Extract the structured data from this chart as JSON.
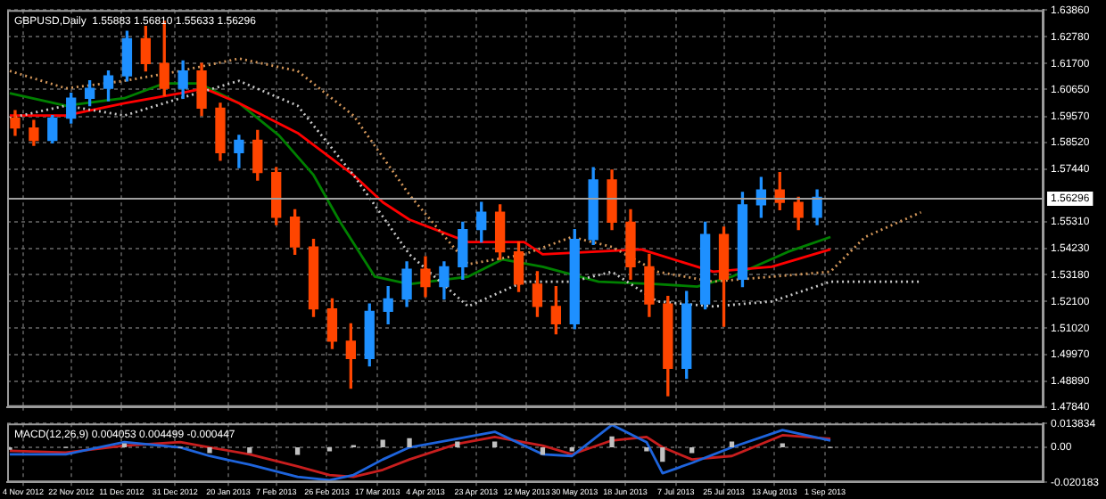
{
  "chart_data": [
    {
      "type": "candlestick",
      "title": "GBPUSD,Daily  1.55883 1.56810 1.55633 1.56296",
      "x": [
        "2012-11-01",
        "2012-11-08",
        "2012-11-15",
        "2012-11-22",
        "2012-11-29",
        "2012-12-06",
        "2012-12-13",
        "2012-12-20",
        "2012-12-27",
        "2013-01-03",
        "2013-01-10",
        "2013-01-17",
        "2013-01-24",
        "2013-01-31",
        "2013-02-07",
        "2013-02-14",
        "2013-02-21",
        "2013-02-28",
        "2013-03-07",
        "2013-03-14",
        "2013-03-21",
        "2013-03-28",
        "2013-04-04",
        "2013-04-11",
        "2013-04-18",
        "2013-04-25",
        "2013-05-02",
        "2013-05-09",
        "2013-05-16",
        "2013-05-23",
        "2013-05-30",
        "2013-06-06",
        "2013-06-13",
        "2013-06-20",
        "2013-06-27",
        "2013-07-04",
        "2013-07-11",
        "2013-07-18",
        "2013-07-25",
        "2013-08-01",
        "2013-08-08",
        "2013-08-15",
        "2013-08-22",
        "2013-08-29"
      ],
      "ohlc": [
        [
          1.595,
          1.598,
          1.588,
          1.591
        ],
        [
          1.591,
          1.594,
          1.584,
          1.586
        ],
        [
          1.586,
          1.596,
          1.585,
          1.595
        ],
        [
          1.595,
          1.605,
          1.593,
          1.603
        ],
        [
          1.603,
          1.61,
          1.6,
          1.607
        ],
        [
          1.607,
          1.614,
          1.602,
          1.612
        ],
        [
          1.612,
          1.63,
          1.61,
          1.627
        ],
        [
          1.627,
          1.632,
          1.614,
          1.617
        ],
        [
          1.617,
          1.634,
          1.604,
          1.607
        ],
        [
          1.607,
          1.618,
          1.603,
          1.614
        ],
        [
          1.614,
          1.617,
          1.596,
          1.599
        ],
        [
          1.599,
          1.601,
          1.578,
          1.581
        ],
        [
          1.581,
          1.588,
          1.575,
          1.586
        ],
        [
          1.586,
          1.59,
          1.57,
          1.573
        ],
        [
          1.573,
          1.575,
          1.552,
          1.555
        ],
        [
          1.555,
          1.558,
          1.54,
          1.543
        ],
        [
          1.543,
          1.546,
          1.515,
          1.518
        ],
        [
          1.518,
          1.522,
          1.502,
          1.505
        ],
        [
          1.505,
          1.512,
          1.486,
          1.498
        ],
        [
          1.498,
          1.52,
          1.495,
          1.517
        ],
        [
          1.517,
          1.527,
          1.512,
          1.522
        ],
        [
          1.522,
          1.537,
          1.519,
          1.534
        ],
        [
          1.534,
          1.539,
          1.523,
          1.527
        ],
        [
          1.527,
          1.537,
          1.522,
          1.535
        ],
        [
          1.535,
          1.553,
          1.53,
          1.55
        ],
        [
          1.55,
          1.561,
          1.545,
          1.557
        ],
        [
          1.557,
          1.56,
          1.538,
          1.541
        ],
        [
          1.541,
          1.545,
          1.525,
          1.528
        ],
        [
          1.528,
          1.533,
          1.515,
          1.519
        ],
        [
          1.519,
          1.527,
          1.508,
          1.512
        ],
        [
          1.512,
          1.55,
          1.51,
          1.546
        ],
        [
          1.546,
          1.575,
          1.544,
          1.57
        ],
        [
          1.57,
          1.574,
          1.55,
          1.553
        ],
        [
          1.553,
          1.558,
          1.53,
          1.535
        ],
        [
          1.535,
          1.54,
          1.515,
          1.52
        ],
        [
          1.52,
          1.523,
          1.483,
          1.494
        ],
        [
          1.494,
          1.525,
          1.49,
          1.52
        ],
        [
          1.52,
          1.553,
          1.518,
          1.548
        ],
        [
          1.548,
          1.551,
          1.511,
          1.53
        ],
        [
          1.53,
          1.565,
          1.527,
          1.56
        ],
        [
          1.56,
          1.571,
          1.555,
          1.566
        ],
        [
          1.566,
          1.573,
          1.558,
          1.561
        ],
        [
          1.561,
          1.563,
          1.55,
          1.555
        ],
        [
          1.555,
          1.566,
          1.552,
          1.563
        ]
      ],
      "colors": [
        "#ff4500",
        "#ff4500",
        "#1e90ff",
        "#1e90ff",
        "#1e90ff",
        "#1e90ff",
        "#1e90ff",
        "#ff4500",
        "#ff4500",
        "#1e90ff",
        "#ff4500",
        "#ff4500",
        "#1e90ff",
        "#ff4500",
        "#ff4500",
        "#ff4500",
        "#ff4500",
        "#ff4500",
        "#ff4500",
        "#1e90ff",
        "#1e90ff",
        "#1e90ff",
        "#ff4500",
        "#1e90ff",
        "#1e90ff",
        "#1e90ff",
        "#ff4500",
        "#ff4500",
        "#ff4500",
        "#ff4500",
        "#1e90ff",
        "#1e90ff",
        "#ff4500",
        "#ff4500",
        "#ff4500",
        "#ff4500",
        "#1e90ff",
        "#1e90ff",
        "#ff4500",
        "#1e90ff",
        "#1e90ff",
        "#ff4500",
        "#ff4500",
        "#1e90ff"
      ],
      "series": [
        {
          "type": "line",
          "color": "#d2965a",
          "line_style": "dotted",
          "x": [
            "2012-10-30",
            "2012-11-20",
            "2012-12-12",
            "2013-01-02",
            "2013-01-24",
            "2013-02-15",
            "2013-03-08",
            "2013-03-29",
            "2013-04-20",
            "2013-05-11",
            "2013-05-29",
            "2013-06-13",
            "2013-06-30",
            "2013-07-21",
            "2013-08-12",
            "2013-09-03",
            "2013-09-16",
            "2013-10-07"
          ],
          "values": [
            1.614,
            1.607,
            1.61,
            1.614,
            1.619,
            1.614,
            1.596,
            1.564,
            1.536,
            1.54,
            1.547,
            1.543,
            1.533,
            1.529,
            1.531,
            1.533,
            1.547,
            1.557
          ]
        },
        {
          "type": "line",
          "color": "#c8c8c8",
          "line_style": "dotted",
          "x": [
            "2012-10-30",
            "2012-11-20",
            "2012-12-12",
            "2013-01-02",
            "2013-01-24",
            "2013-02-15",
            "2013-03-08",
            "2013-03-29",
            "2013-04-20",
            "2013-05-11",
            "2013-05-29",
            "2013-06-13",
            "2013-06-30",
            "2013-07-21",
            "2013-08-12",
            "2013-09-03",
            "2013-09-16",
            "2013-10-07"
          ],
          "values": [
            1.595,
            1.6,
            1.596,
            1.603,
            1.61,
            1.6,
            1.572,
            1.54,
            1.519,
            1.529,
            1.529,
            1.533,
            1.521,
            1.519,
            1.521,
            1.529,
            1.529,
            1.529
          ]
        },
        {
          "type": "line",
          "color": "#ff0000",
          "x": [
            "2012-10-30",
            "2012-11-20",
            "2012-12-12",
            "2013-01-02",
            "2013-01-11",
            "2013-01-24",
            "2013-02-15",
            "2013-03-08",
            "2013-03-19",
            "2013-03-29",
            "2013-04-20",
            "2013-05-11",
            "2013-05-18",
            "2013-06-24",
            "2013-07-21",
            "2013-08-12",
            "2013-09-03"
          ],
          "values": [
            1.596,
            1.596,
            1.601,
            1.605,
            1.607,
            1.601,
            1.589,
            1.572,
            1.561,
            1.554,
            1.545,
            1.545,
            1.54,
            1.542,
            1.533,
            1.535,
            1.542
          ]
        },
        {
          "type": "line",
          "color": "#008000",
          "x": [
            "2012-10-30",
            "2012-11-20",
            "2012-12-12",
            "2012-12-27",
            "2013-01-09",
            "2013-01-24",
            "2013-02-08",
            "2013-02-21",
            "2013-03-03",
            "2013-03-16",
            "2013-03-29",
            "2013-04-20",
            "2013-05-03",
            "2013-05-18",
            "2013-06-08",
            "2013-06-30",
            "2013-07-15",
            "2013-07-28",
            "2013-08-18",
            "2013-09-03"
          ],
          "values": [
            1.605,
            1.6,
            1.603,
            1.609,
            1.609,
            1.601,
            1.588,
            1.572,
            1.553,
            1.531,
            1.528,
            1.531,
            1.538,
            1.535,
            1.529,
            1.528,
            1.527,
            1.531,
            1.541,
            1.547
          ]
        }
      ],
      "xlim": [
        "2012-10-29",
        "2013-11-22"
      ],
      "xticks": [
        {
          "value": "2012-11-04",
          "label": null
        },
        {
          "value": "2012-11-22",
          "label": null
        },
        {
          "value": "2012-12-11",
          "label": null
        },
        {
          "value": "2012-12-31",
          "label": null
        },
        {
          "value": "2013-01-20",
          "label": null
        },
        {
          "value": "2013-02-07",
          "label": null
        },
        {
          "value": "2013-02-26",
          "label": null
        },
        {
          "value": "2013-03-17",
          "label": null
        },
        {
          "value": "2013-04-04",
          "label": null
        },
        {
          "value": "2013-04-23",
          "label": null
        },
        {
          "value": "2013-05-12",
          "label": null
        },
        {
          "value": "2013-05-30",
          "label": null
        },
        {
          "value": "2013-06-18",
          "label": null
        },
        {
          "value": "2013-07-07",
          "label": null
        },
        {
          "value": "2013-07-25",
          "label": null
        },
        {
          "value": "2013-08-13",
          "label": null
        },
        {
          "value": "2013-09-01",
          "label": null
        }
      ],
      "ylim": [
        1.4784,
        1.6386
      ],
      "yticks": [
        {
          "value": 1.6386,
          "label": "1.63860"
        },
        {
          "value": 1.6278,
          "label": "1.62780"
        },
        {
          "value": 1.617,
          "label": "1.61700"
        },
        {
          "value": 1.6065,
          "label": "1.60650"
        },
        {
          "value": 1.5957,
          "label": "1.59570"
        },
        {
          "value": 1.5852,
          "label": "1.58520"
        },
        {
          "value": 1.5744,
          "label": "1.57440"
        },
        {
          "value": 1.5531,
          "label": "1.55310"
        },
        {
          "value": 1.5423,
          "label": "1.54230"
        },
        {
          "value": 1.5318,
          "label": "1.53180"
        },
        {
          "value": 1.521,
          "label": "1.52100"
        },
        {
          "value": 1.5102,
          "label": "1.51020"
        },
        {
          "value": 1.4997,
          "label": "1.49970"
        },
        {
          "value": 1.4889,
          "label": "1.48890"
        },
        {
          "value": 1.4784,
          "label": "1.47840"
        }
      ],
      "ref_lines": [
        {
          "axis": "y",
          "value": 1.56296,
          "label": "1.56296",
          "color": "#a0a0a0"
        }
      ],
      "tick_labels": "y",
      "grid": true,
      "legend": false,
      "marker": "none"
    },
    {
      "type": "line",
      "title": "MACD(12,26,9) 0.004053 0.004499 -0.000447",
      "x": [
        "2012-10-30",
        "2012-11-20",
        "2012-12-12",
        "2013-01-02",
        "2013-01-13",
        "2013-01-28",
        "2013-02-15",
        "2013-02-27",
        "2013-03-08",
        "2013-03-19",
        "2013-03-29",
        "2013-04-16",
        "2013-04-30",
        "2013-05-18",
        "2013-05-29",
        "2013-06-13",
        "2013-06-26",
        "2013-07-02",
        "2013-07-13",
        "2013-07-28",
        "2013-08-16",
        "2013-09-03"
      ],
      "series": [
        {
          "type": "bar",
          "color": "#c0c0c0",
          "values": [
            -0.001,
            0,
            0.002,
            0,
            -0.003,
            -0.003,
            -0.004,
            -0.002,
            0.001,
            0.004,
            0.005,
            0.003,
            0.003,
            -0.004,
            -0.002,
            0.006,
            -0.002,
            -0.008,
            -0.003,
            0.003,
            0.002,
            0
          ]
        },
        {
          "type": "line",
          "color": "#1e64dc",
          "values": [
            -0.004,
            -0.004,
            0.003,
            0,
            -0.005,
            -0.01,
            -0.017,
            -0.019,
            -0.016,
            -0.007,
            0,
            0.005,
            0.009,
            -0.004,
            -0.005,
            0.013,
            0.003,
            -0.015,
            -0.009,
            0,
            0.01,
            0.004
          ]
        },
        {
          "type": "line",
          "color": "#c81e1e",
          "values": [
            -0.002,
            -0.003,
            0.001,
            0.003,
            0,
            -0.004,
            -0.011,
            -0.016,
            -0.017,
            -0.013,
            -0.007,
            0.002,
            0.006,
            0.001,
            -0.004,
            0.004,
            0.006,
            0,
            -0.007,
            -0.005,
            0.007,
            0.005
          ]
        }
      ],
      "xlim": [
        "2012-10-29",
        "2013-11-22"
      ],
      "xticks": [
        {
          "value": "2012-11-04",
          "label": "4 Nov 2012"
        },
        {
          "value": "2012-11-22",
          "label": "22 Nov 2012"
        },
        {
          "value": "2012-12-11",
          "label": "11 Dec 2012"
        },
        {
          "value": "2012-12-31",
          "label": "31 Dec 2012"
        },
        {
          "value": "2013-01-20",
          "label": "20 Jan 2013"
        },
        {
          "value": "2013-02-07",
          "label": "7 Feb 2013"
        },
        {
          "value": "2013-02-26",
          "label": "26 Feb 2013"
        },
        {
          "value": "2013-03-17",
          "label": "17 Mar 2013"
        },
        {
          "value": "2013-04-04",
          "label": "4 Apr 2013"
        },
        {
          "value": "2013-04-23",
          "label": "23 Apr 2013"
        },
        {
          "value": "2013-05-12",
          "label": "12 May 2013"
        },
        {
          "value": "2013-05-30",
          "label": "30 May 2013"
        },
        {
          "value": "2013-06-18",
          "label": "18 Jun 2013"
        },
        {
          "value": "2013-07-07",
          "label": "7 Jul 2013"
        },
        {
          "value": "2013-07-25",
          "label": "25 Jul 2013"
        },
        {
          "value": "2013-08-13",
          "label": "13 Aug 2013"
        },
        {
          "value": "2013-09-01",
          "label": "1 Sep 2013"
        }
      ],
      "ylim": [
        -0.020183,
        0.013834
      ],
      "yticks": [
        {
          "value": 0.013834,
          "label": "0.013834"
        },
        {
          "value": 0,
          "label": "0.00"
        },
        {
          "value": -0.020183,
          "label": "-0.020183"
        }
      ],
      "grid": true,
      "legend": false,
      "marker": "none"
    }
  ]
}
